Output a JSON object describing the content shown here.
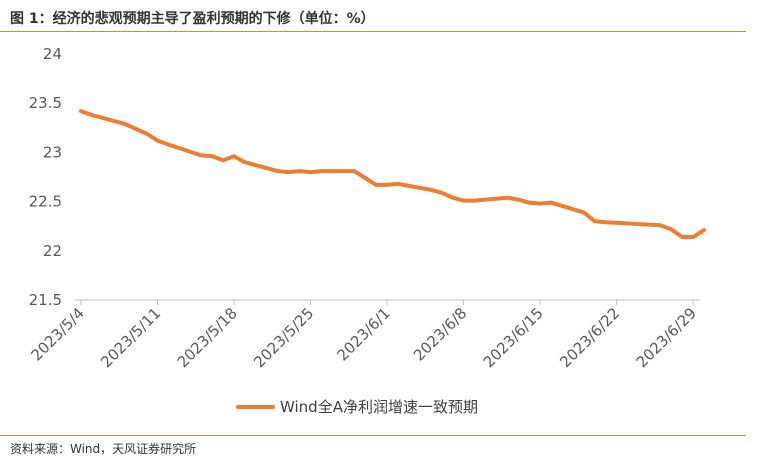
{
  "header": {
    "title": "图 1：经济的悲观预期主导了盈利预期的下修（单位：%）"
  },
  "footer": {
    "source": "资料来源：Wind，天风证券研究所"
  },
  "colors": {
    "accent": "#e08a2e",
    "line": "#ed7d31",
    "axis": "#bfbfbf"
  },
  "chart_data": {
    "type": "line",
    "title": "",
    "xlabel": "",
    "ylabel": "",
    "ylim": [
      21.5,
      24
    ],
    "y_ticks": [
      "24",
      "23.5",
      "23",
      "22.5",
      "22",
      "21.5"
    ],
    "x_ticks": [
      "2023/5/4",
      "2023/5/11",
      "2023/5/18",
      "2023/5/25",
      "2023/6/1",
      "2023/6/8",
      "2023/6/15",
      "2023/6/22",
      "2023/6/29"
    ],
    "grid": false,
    "legend_position": "bottom",
    "series": [
      {
        "name": "Wind全A净利润增速一致预期",
        "x": [
          "2023/5/4",
          "2023/5/5",
          "2023/5/8",
          "2023/5/9",
          "2023/5/10",
          "2023/5/11",
          "2023/5/12",
          "2023/5/15",
          "2023/5/16",
          "2023/5/17",
          "2023/5/18",
          "2023/5/19",
          "2023/5/22",
          "2023/5/23",
          "2023/5/24",
          "2023/5/25",
          "2023/5/26",
          "2023/5/29",
          "2023/5/30",
          "2023/5/31",
          "2023/6/1",
          "2023/6/2",
          "2023/6/5",
          "2023/6/6",
          "2023/6/7",
          "2023/6/8",
          "2023/6/9",
          "2023/6/12",
          "2023/6/13",
          "2023/6/14",
          "2023/6/15",
          "2023/6/16",
          "2023/6/19",
          "2023/6/20",
          "2023/6/21",
          "2023/6/26",
          "2023/6/27",
          "2023/6/28",
          "2023/6/29",
          "2023/6/30"
        ],
        "values": [
          23.42,
          23.38,
          23.29,
          23.24,
          23.19,
          23.12,
          23.08,
          22.97,
          22.96,
          22.92,
          22.96,
          22.9,
          22.81,
          22.8,
          22.81,
          22.8,
          22.81,
          22.81,
          22.74,
          22.67,
          22.67,
          22.68,
          22.62,
          22.59,
          22.54,
          22.51,
          22.51,
          22.54,
          22.52,
          22.49,
          22.48,
          22.49,
          22.39,
          22.3,
          22.29,
          22.26,
          22.22,
          22.14,
          22.14,
          22.21
        ]
      }
    ]
  }
}
